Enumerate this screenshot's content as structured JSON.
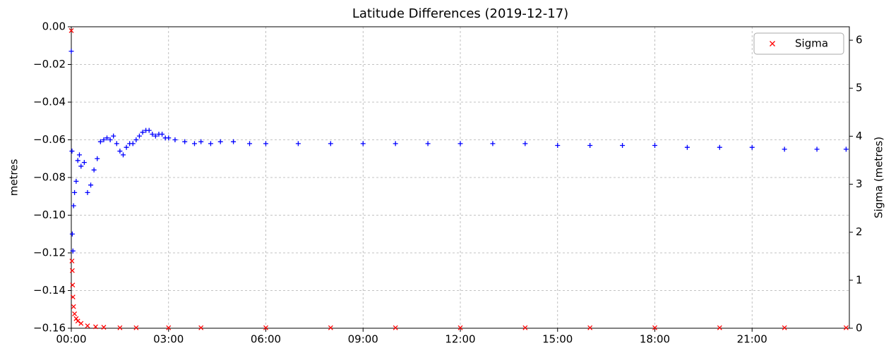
{
  "chart_data": {
    "type": "scatter",
    "title": "Latitude Differences (2019-12-17)",
    "ylabel": "metres",
    "y2label": "Sigma (metres)",
    "xlim": [
      0,
      24
    ],
    "xticks": [
      {
        "value": 0,
        "label": "00:00"
      },
      {
        "value": 3,
        "label": "03:00"
      },
      {
        "value": 6,
        "label": "06:00"
      },
      {
        "value": 9,
        "label": "09:00"
      },
      {
        "value": 12,
        "label": "12:00"
      },
      {
        "value": 15,
        "label": "15:00"
      },
      {
        "value": 18,
        "label": "18:00"
      },
      {
        "value": 21,
        "label": "21:00"
      }
    ],
    "ylim": [
      -0.16,
      0
    ],
    "yticks": [
      {
        "value": -0.16,
        "label": "−0.16"
      },
      {
        "value": -0.14,
        "label": "−0.14"
      },
      {
        "value": -0.12,
        "label": "−0.12"
      },
      {
        "value": -0.1,
        "label": "−0.10"
      },
      {
        "value": -0.08,
        "label": "−0.08"
      },
      {
        "value": -0.06,
        "label": "−0.06"
      },
      {
        "value": -0.04,
        "label": "−0.04"
      },
      {
        "value": -0.02,
        "label": "−0.02"
      },
      {
        "value": 0,
        "label": "0.00"
      }
    ],
    "y2lim": [
      0,
      6.28
    ],
    "y2ticks": [
      0,
      1,
      2,
      3,
      4,
      5,
      6
    ],
    "grid": true,
    "legend": "upper right",
    "series": [
      {
        "color": "#0000ff",
        "marker": "plus",
        "x": [
          0,
          0.02,
          0.03,
          0.05,
          0.07,
          0.1,
          0.15,
          0.2,
          0.25,
          0.3,
          0.4,
          0.5,
          0.6,
          0.7,
          0.8,
          0.9,
          1.0,
          1.1,
          1.2,
          1.3,
          1.4,
          1.5,
          1.6,
          1.7,
          1.8,
          1.9,
          2.0,
          2.1,
          2.2,
          2.3,
          2.4,
          2.5,
          2.6,
          2.7,
          2.8,
          2.9,
          3.0,
          3.2,
          3.5,
          3.8,
          4.0,
          4.3,
          4.6,
          5.0,
          5.5,
          6,
          7,
          8,
          9,
          10,
          11,
          12,
          13,
          14,
          15,
          16,
          17,
          18,
          19,
          20,
          21,
          22,
          23,
          23.9
        ],
        "values": [
          -0.013,
          -0.066,
          -0.11,
          -0.119,
          -0.095,
          -0.088,
          -0.082,
          -0.071,
          -0.068,
          -0.074,
          -0.072,
          -0.088,
          -0.084,
          -0.076,
          -0.07,
          -0.061,
          -0.06,
          -0.059,
          -0.06,
          -0.058,
          -0.062,
          -0.066,
          -0.068,
          -0.064,
          -0.062,
          -0.062,
          -0.06,
          -0.058,
          -0.056,
          -0.055,
          -0.055,
          -0.057,
          -0.058,
          -0.057,
          -0.057,
          -0.059,
          -0.059,
          -0.06,
          -0.061,
          -0.062,
          -0.061,
          -0.062,
          -0.061,
          -0.061,
          -0.062,
          -0.062,
          -0.062,
          -0.062,
          -0.062,
          -0.062,
          -0.062,
          -0.062,
          -0.062,
          -0.062,
          -0.063,
          -0.063,
          -0.063,
          -0.063,
          -0.064,
          -0.064,
          -0.064,
          -0.065,
          -0.065,
          -0.065
        ]
      },
      {
        "name": "Sigma",
        "color": "#ff0000",
        "marker": "x",
        "axis": "y2",
        "x": [
          0,
          0.02,
          0.03,
          0.04,
          0.05,
          0.07,
          0.1,
          0.15,
          0.2,
          0.3,
          0.5,
          0.75,
          1,
          1.5,
          2,
          3,
          4,
          6,
          8,
          10,
          12,
          14,
          16,
          18,
          20,
          22,
          23.9
        ],
        "values": [
          6.2,
          1.4,
          1.2,
          0.9,
          0.65,
          0.45,
          0.3,
          0.2,
          0.15,
          0.1,
          0.05,
          0.03,
          0.02,
          0.01,
          0.01,
          0.01,
          0.01,
          0.01,
          0.01,
          0.01,
          0.01,
          0.01,
          0.01,
          0.01,
          0.01,
          0.01,
          0.01
        ]
      }
    ]
  }
}
